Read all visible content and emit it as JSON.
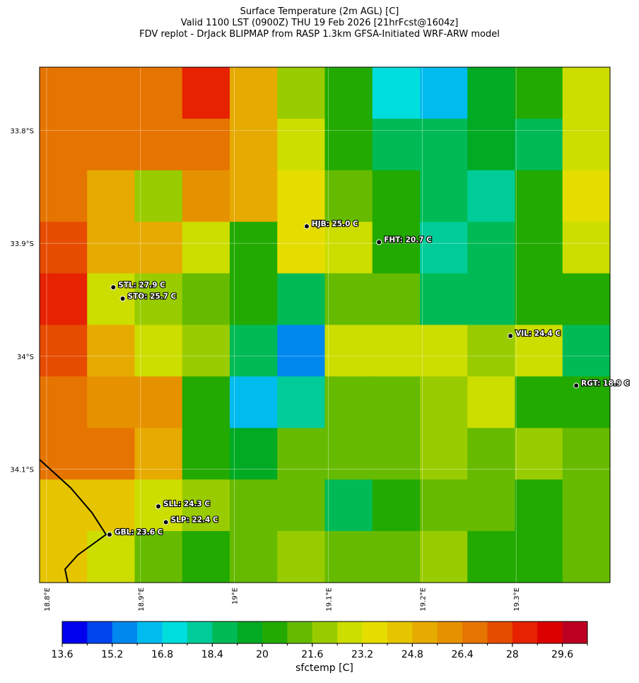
{
  "chart_data": {
    "type": "map",
    "title": [
      "Surface Temperature (2m AGL) [C]",
      "Valid 1100 LST (0900Z) THU 19 Feb 2026 [21hrFcst@1604z]",
      "FDV replot - DrJack BLIPMAP from RASP 1.3km GFSA-Initiated WRF-ARW model"
    ],
    "xlim": [
      18.7925,
      19.4
    ],
    "ylim": [
      33.744,
      34.2005
    ],
    "xticks": [
      {
        "value": 18.8,
        "label": "18.8°E"
      },
      {
        "value": 18.9,
        "label": "18.9°E"
      },
      {
        "value": 19.0,
        "label": "19°E"
      },
      {
        "value": 19.1,
        "label": "19.1°E"
      },
      {
        "value": 19.2,
        "label": "19.2°E"
      },
      {
        "value": 19.3,
        "label": "19.3°E"
      }
    ],
    "yticks": [
      {
        "value": 33.8,
        "label": "33.8°S"
      },
      {
        "value": 33.9,
        "label": "33.9°S"
      },
      {
        "value": 34.0,
        "label": "34°S"
      },
      {
        "value": 34.1,
        "label": "34.1°S"
      }
    ],
    "grid": true,
    "temperature_grid": [
      [
        26.8,
        27,
        26.5,
        28.5,
        25.5,
        22,
        20.5,
        17.5,
        16.5,
        19.5,
        20,
        23
      ],
      [
        26.5,
        27,
        26.5,
        26.8,
        25.5,
        23,
        20.5,
        19,
        18.5,
        19.5,
        19,
        22.5
      ],
      [
        27,
        25.5,
        22,
        26,
        25,
        23.5,
        21,
        20.5,
        18.5,
        18,
        20,
        23.5
      ],
      [
        27.5,
        25,
        25,
        22.5,
        20,
        23.5,
        23,
        20,
        18,
        19,
        20,
        22.5
      ],
      [
        28,
        23,
        22,
        21,
        20,
        19,
        21,
        21,
        19,
        19,
        20,
        20
      ],
      [
        27.5,
        25.5,
        23,
        22,
        18.5,
        15.5,
        22.5,
        22.5,
        23,
        22,
        23,
        19
      ],
      [
        27,
        26,
        26,
        20,
        16,
        18,
        21.5,
        21,
        22,
        22.5,
        20,
        20.5
      ],
      [
        27,
        26.5,
        25.5,
        20,
        19.5,
        21,
        21,
        21,
        22,
        21,
        22,
        21.5
      ],
      [
        24.5,
        24,
        22.5,
        22,
        21,
        21.5,
        19,
        20.5,
        21,
        21,
        20,
        21
      ],
      [
        24,
        23,
        21.5,
        20.5,
        21.5,
        22,
        21.5,
        21,
        22,
        20.5,
        20,
        21
      ]
    ],
    "stations": [
      {
        "label": "HJB: 25.0 C",
        "lon": 19.077,
        "lat": 33.885
      },
      {
        "label": "FHT: 20.7 C",
        "lon": 19.154,
        "lat": 33.899
      },
      {
        "label": "STL: 27.9 C",
        "lon": 18.871,
        "lat": 33.939
      },
      {
        "label": "STO: 25.7 C",
        "lon": 18.881,
        "lat": 33.949
      },
      {
        "label": "VIL: 24.4 C",
        "lon": 19.294,
        "lat": 33.982
      },
      {
        "label": "RGT: 18.9 C",
        "lon": 19.364,
        "lat": 34.026
      },
      {
        "label": "SLL: 24.3 C",
        "lon": 18.919,
        "lat": 34.133
      },
      {
        "label": "SLP: 22.4 C",
        "lon": 18.927,
        "lat": 34.147
      },
      {
        "label": "GBL: 23.6 C",
        "lon": 18.867,
        "lat": 34.158
      }
    ],
    "colorbar": {
      "label": "sfctemp [C]",
      "levels": [
        13.6,
        14.4,
        15.2,
        16.0,
        16.8,
        17.6,
        18.4,
        19.2,
        20.0,
        20.8,
        21.6,
        22.4,
        23.2,
        24.0,
        24.8,
        25.6,
        26.4,
        27.2,
        28.0,
        28.8,
        29.6,
        30.4
      ],
      "ticks": [
        13.6,
        15.2,
        16.8,
        18.4,
        20.0,
        21.6,
        23.2,
        24.8,
        26.4,
        28.0,
        29.6
      ],
      "colors": [
        "#0000ee",
        "#0044ee",
        "#0088ee",
        "#00bbee",
        "#00dddd",
        "#00cc99",
        "#00bb55",
        "#00aa22",
        "#22aa00",
        "#66bb00",
        "#99cc00",
        "#ccdd00",
        "#e6dd00",
        "#e6c400",
        "#e6aa00",
        "#e69200",
        "#e67400",
        "#e64c00",
        "#e62200",
        "#dd0000",
        "#bb0022"
      ]
    }
  }
}
